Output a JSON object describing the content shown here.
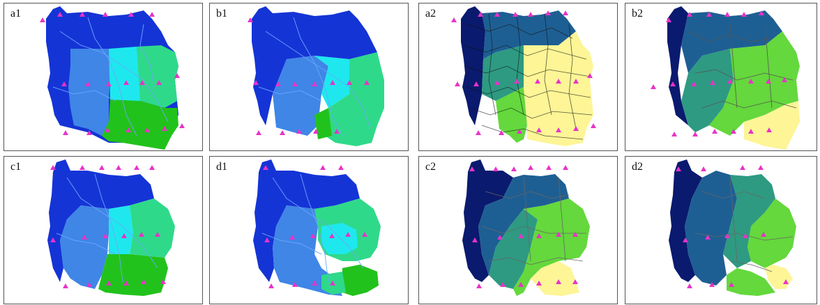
{
  "panels": [
    {
      "label": "a1"
    },
    {
      "label": "b1"
    },
    {
      "label": "a2"
    },
    {
      "label": "b2"
    },
    {
      "label": "c1"
    },
    {
      "label": "d1"
    },
    {
      "label": "c2"
    },
    {
      "label": "d2"
    }
  ],
  "colors": {
    "set1": [
      "#1534d6",
      "#3f86e6",
      "#1ee8ee",
      "#2fd98a",
      "#22c21c"
    ],
    "set2": [
      "#0a1a6e",
      "#1e5f93",
      "#2e9a82",
      "#64d83c",
      "#fdf596"
    ],
    "river": "#6aa8ff",
    "station": "#e833c8"
  }
}
